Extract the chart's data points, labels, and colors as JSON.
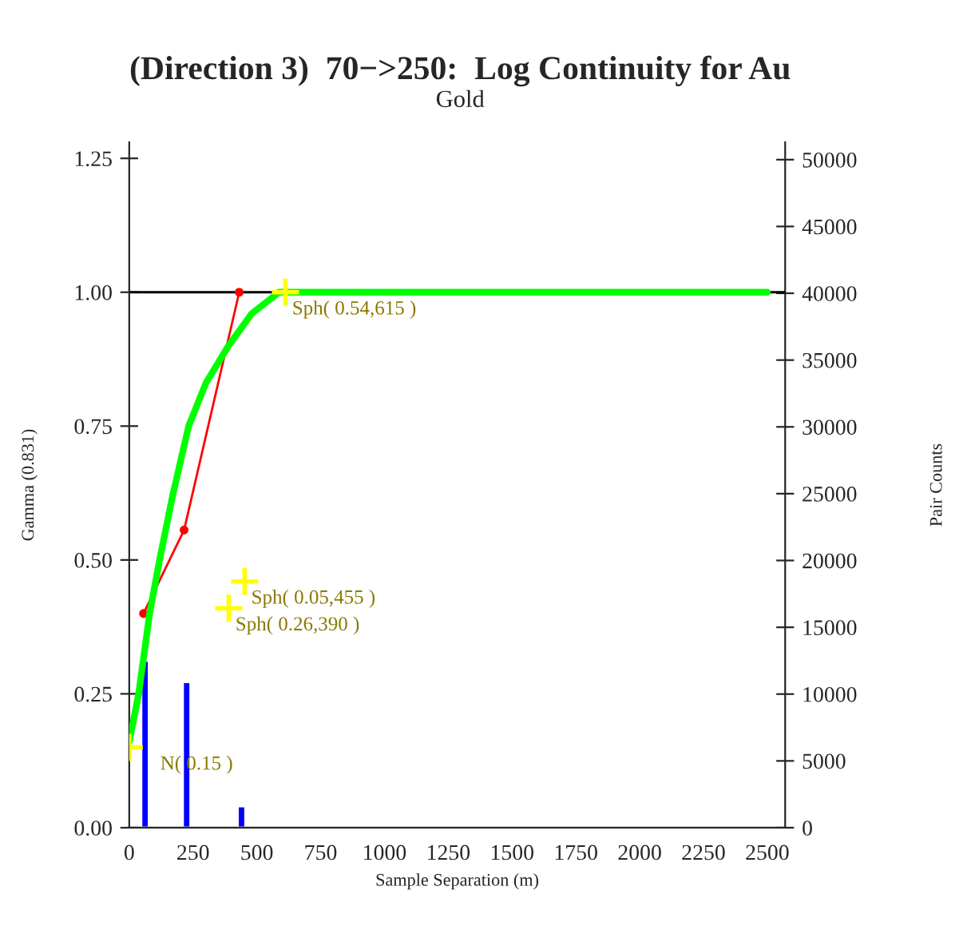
{
  "chart_data": {
    "type": "line",
    "title": "(Direction 3)  70−>250:  Log Continuity for Au",
    "subtitle": "Gold",
    "xlabel": "Sample Separation (m)",
    "ylabel": "Gamma (0.831)",
    "y2label": "Pair Counts",
    "xlim": [
      0,
      2570
    ],
    "xticks": [
      0,
      250,
      500,
      750,
      1000,
      1250,
      1500,
      1750,
      2000,
      2250,
      2500
    ],
    "ylim": [
      0,
      1.28
    ],
    "yticks": [
      {
        "value": 0,
        "label": "0.00"
      },
      {
        "value": 0.25,
        "label": "0.25"
      },
      {
        "value": 0.5,
        "label": "0.50"
      },
      {
        "value": 0.75,
        "label": "0.75"
      },
      {
        "value": 1.0,
        "label": "1.00"
      },
      {
        "value": 1.25,
        "label": "1.25"
      }
    ],
    "y2lim": [
      0,
      51300
    ],
    "y2ticks": [
      0,
      5000,
      10000,
      15000,
      20000,
      25000,
      30000,
      35000,
      40000,
      45000,
      50000
    ],
    "series": [
      {
        "type": "bar",
        "axis": "y2",
        "color": "#0000ff",
        "x": [
          62,
          225,
          440
        ],
        "values": [
          12500,
          10900,
          1600
        ]
      },
      {
        "color": "#ff0000",
        "marker": "circle",
        "x": [
          56,
          215,
          431
        ],
        "values": [
          0.4,
          0.556,
          1.0
        ]
      },
      {
        "color": "#00ff00",
        "x": [
          0,
          37,
          80,
          119,
          170,
          233,
          300,
          389,
          480,
          587,
          2500
        ],
        "values": [
          0.16,
          0.25,
          0.4,
          0.5,
          0.62,
          0.75,
          0.83,
          0.9,
          0.96,
          1.0,
          1.0
        ]
      },
      {
        "type": "scatter",
        "color": "#ffff00",
        "marker": "cross",
        "x": [
          0,
          452,
          390,
          612
        ],
        "values": [
          0.15,
          0.46,
          0.41,
          1.0
        ]
      }
    ],
    "ref_lines": [
      {
        "axis": "y",
        "value": 1.0,
        "color": "#000000"
      }
    ],
    "annotations": [
      {
        "text": "N( 0.15 )",
        "x": 0,
        "y": 0.15
      },
      {
        "text": "Sph( 0.05,455 )",
        "x": 452,
        "y": 0.46
      },
      {
        "text": "Sph( 0.26,390 )",
        "x": 390,
        "y": 0.41
      },
      {
        "text": "Sph( 0.54,615 )",
        "x": 612,
        "y": 1.0
      }
    ],
    "grid": false,
    "legend": false
  }
}
